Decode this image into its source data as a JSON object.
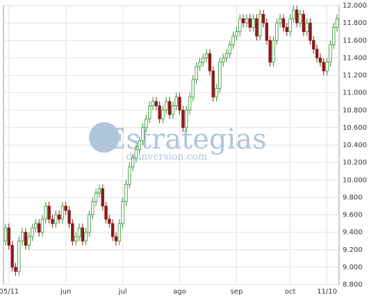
{
  "chart_data": {
    "type": "candlestick",
    "categories": [
      null,
      "05/11",
      null,
      null,
      null,
      null,
      null,
      null,
      null,
      null,
      null,
      null,
      null,
      null,
      null,
      null,
      null,
      null,
      "jun",
      null,
      null,
      null,
      null,
      null,
      null,
      null,
      null,
      null,
      null,
      null,
      null,
      null,
      null,
      null,
      null,
      "jul",
      null,
      null,
      null,
      null,
      null,
      null,
      null,
      null,
      null,
      null,
      null,
      null,
      null,
      null,
      null,
      null,
      "ago",
      null,
      null,
      null,
      null,
      null,
      null,
      null,
      null,
      null,
      null,
      null,
      null,
      null,
      null,
      null,
      null,
      "sep",
      null,
      null,
      null,
      null,
      null,
      null,
      null,
      null,
      null,
      null,
      null,
      null,
      null,
      null,
      null,
      "oct",
      null,
      null,
      null,
      null,
      null,
      null,
      null,
      null,
      null,
      null,
      "11/10",
      null,
      null,
      null
    ],
    "open": [
      9300,
      9450,
      9250,
      9000,
      8950,
      9300,
      9400,
      9250,
      9350,
      9450,
      9500,
      9400,
      9550,
      9700,
      9550,
      9500,
      9600,
      9550,
      9700,
      9650,
      9500,
      9300,
      9350,
      9450,
      9300,
      9400,
      9600,
      9750,
      9850,
      9900,
      9700,
      9550,
      9500,
      9350,
      9300,
      9500,
      9750,
      9950,
      10150,
      10250,
      10350,
      10450,
      10600,
      10700,
      10850,
      10900,
      10850,
      10700,
      10800,
      10900,
      10750,
      10850,
      10950,
      10800,
      10600,
      10800,
      10950,
      11150,
      11300,
      11350,
      11400,
      11450,
      11250,
      10950,
      11050,
      11350,
      11400,
      11450,
      11550,
      11650,
      11700,
      11850,
      11800,
      11850,
      11750,
      11850,
      11650,
      11900,
      11800,
      11600,
      11350,
      11600,
      11800,
      11850,
      11750,
      11700,
      11850,
      11950,
      11800,
      11900,
      11700,
      11800,
      11600,
      11500,
      11400,
      11350,
      11250,
      11350,
      11550,
      11750
    ],
    "high": [
      9500,
      9500,
      9300,
      9050,
      9350,
      9450,
      9450,
      9400,
      9500,
      9550,
      9550,
      9600,
      9750,
      9750,
      9600,
      9650,
      9650,
      9750,
      9750,
      9700,
      9550,
      9400,
      9500,
      9500,
      9450,
      9650,
      9800,
      9900,
      9950,
      9950,
      9750,
      9600,
      9550,
      9400,
      9550,
      9800,
      10000,
      10200,
      10300,
      10400,
      10500,
      10650,
      10750,
      10900,
      10950,
      10950,
      10900,
      10850,
      10950,
      10950,
      10900,
      11000,
      11000,
      10850,
      10850,
      11000,
      11200,
      11350,
      11400,
      11450,
      11500,
      11500,
      11300,
      11100,
      11400,
      11450,
      11500,
      11600,
      11700,
      11750,
      11900,
      11900,
      11900,
      11900,
      11900,
      11900,
      11950,
      11950,
      11850,
      11650,
      11650,
      11850,
      11900,
      11900,
      11800,
      11900,
      12000,
      12000,
      11950,
      11950,
      11850,
      11850,
      11650,
      11550,
      11450,
      11400,
      11400,
      11600,
      11800,
      11900
    ],
    "low": [
      9250,
      9200,
      8950,
      8900,
      8900,
      9250,
      9200,
      9200,
      9300,
      9400,
      9350,
      9350,
      9500,
      9500,
      9450,
      9450,
      9500,
      9500,
      9600,
      9450,
      9250,
      9250,
      9300,
      9250,
      9250,
      9350,
      9550,
      9700,
      9800,
      9650,
      9500,
      9450,
      9300,
      9250,
      9250,
      9450,
      9700,
      9900,
      10100,
      10200,
      10300,
      10400,
      10550,
      10650,
      10800,
      10800,
      10650,
      10650,
      10750,
      10700,
      10700,
      10800,
      10750,
      10550,
      10550,
      10750,
      10900,
      11100,
      11250,
      11300,
      11350,
      11200,
      10900,
      10900,
      11000,
      11300,
      11350,
      11400,
      11500,
      11600,
      11650,
      11750,
      11750,
      11700,
      11700,
      11600,
      11600,
      11750,
      11550,
      11300,
      11300,
      11550,
      11750,
      11700,
      11650,
      11650,
      11800,
      11750,
      11750,
      11650,
      11650,
      11550,
      11450,
      11350,
      11300,
      11200,
      11200,
      11300,
      11500,
      11700
    ],
    "close": [
      9450,
      9250,
      9000,
      8950,
      9300,
      9400,
      9250,
      9350,
      9450,
      9500,
      9400,
      9550,
      9700,
      9550,
      9500,
      9600,
      9550,
      9700,
      9650,
      9500,
      9300,
      9350,
      9450,
      9300,
      9400,
      9600,
      9750,
      9850,
      9900,
      9700,
      9550,
      9500,
      9350,
      9300,
      9500,
      9750,
      9950,
      10150,
      10250,
      10350,
      10450,
      10600,
      10700,
      10850,
      10900,
      10850,
      10700,
      10800,
      10900,
      10750,
      10850,
      10950,
      10800,
      10600,
      10800,
      10950,
      11150,
      11300,
      11350,
      11400,
      11450,
      11250,
      10950,
      11050,
      11350,
      11400,
      11450,
      11550,
      11650,
      11700,
      11850,
      11800,
      11850,
      11750,
      11850,
      11650,
      11900,
      11800,
      11600,
      11350,
      11600,
      11800,
      11850,
      11750,
      11700,
      11850,
      11950,
      11800,
      11900,
      11700,
      11800,
      11600,
      11500,
      11400,
      11350,
      11250,
      11350,
      11550,
      11750,
      11850
    ],
    "up_color": "#2f8f2f",
    "down_color": "#8b1a1a",
    "ylim": [
      8800,
      12000
    ],
    "yticks": [
      {
        "value": 8800,
        "label": "8.800"
      },
      {
        "value": 9000,
        "label": "9.000"
      },
      {
        "value": 9200,
        "label": "9.200"
      },
      {
        "value": 9400,
        "label": "9.400"
      },
      {
        "value": 9600,
        "label": "9.600"
      },
      {
        "value": 9800,
        "label": "9.800"
      },
      {
        "value": 10000,
        "label": "10.000"
      },
      {
        "value": 10200,
        "label": "10.200"
      },
      {
        "value": 10400,
        "label": "10.400"
      },
      {
        "value": 10600,
        "label": "10.600"
      },
      {
        "value": 10800,
        "label": "10.800"
      },
      {
        "value": 11000,
        "label": "11.000"
      },
      {
        "value": 11200,
        "label": "11.200"
      },
      {
        "value": 11400,
        "label": "11.400"
      },
      {
        "value": 11600,
        "label": "11.600"
      },
      {
        "value": 11800,
        "label": "11.800"
      },
      {
        "value": 12000,
        "label": "12.000"
      }
    ],
    "grid": true,
    "watermark": {
      "title": "Estrategias",
      "subtitle": "deinversion.com"
    }
  }
}
